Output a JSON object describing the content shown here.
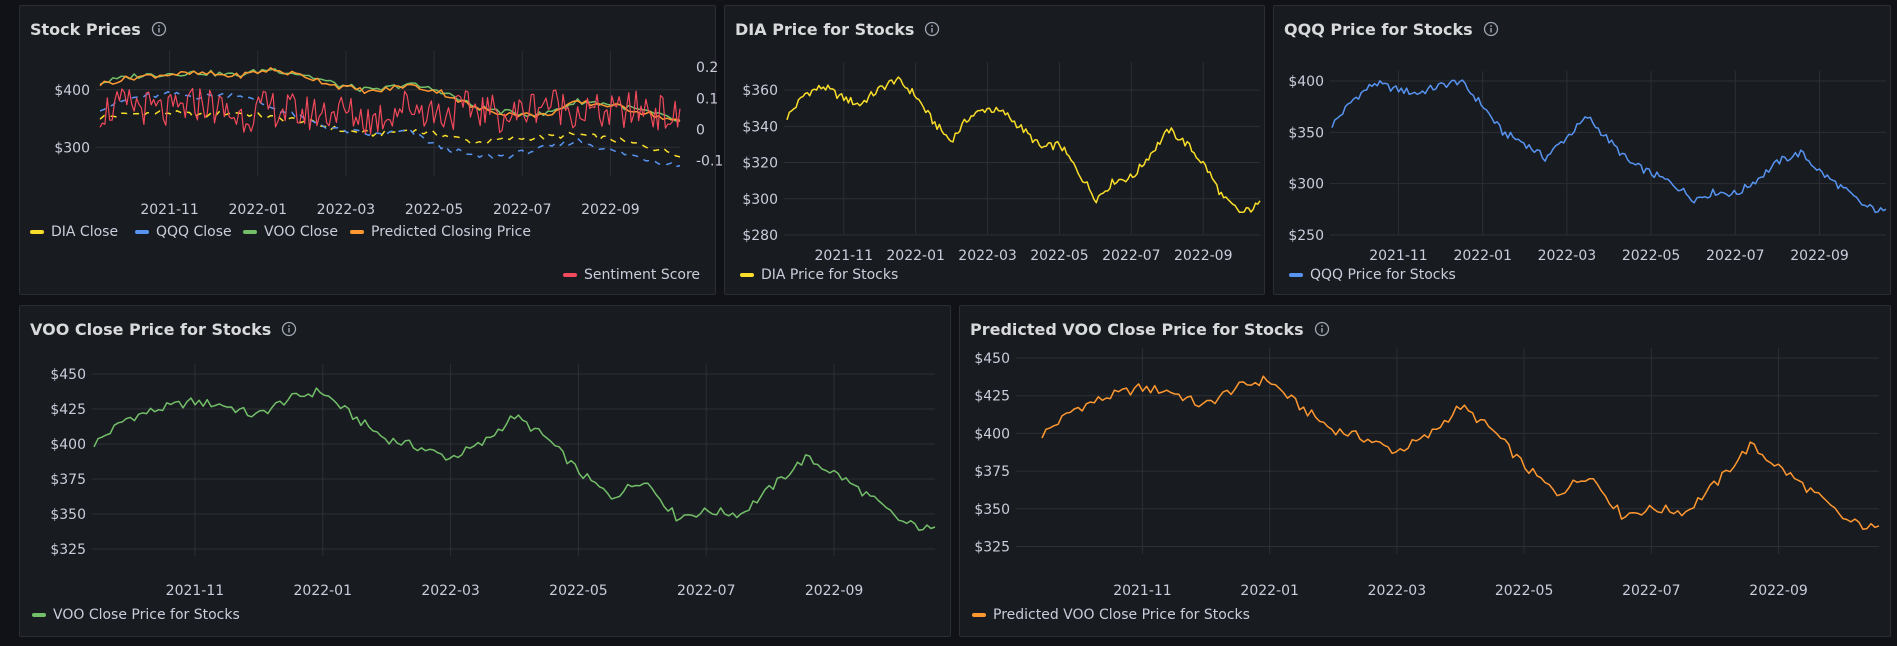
{
  "colors": {
    "dia": "#fade2a",
    "qqq": "#5794f2",
    "voo": "#73bf69",
    "predicted": "#ff9830",
    "sentiment": "#f2495c"
  },
  "icons": {
    "info": "info-circle-icon"
  },
  "panels": {
    "stock_prices": {
      "title": "Stock Prices",
      "legend": [
        "DIA Close",
        "QQQ Close",
        "VOO Close",
        "Predicted Closing Price",
        "Sentiment Score"
      ]
    },
    "dia": {
      "title": "DIA Price for Stocks",
      "legend": [
        "DIA Price for Stocks"
      ]
    },
    "qqq": {
      "title": "QQQ Price for Stocks",
      "legend": [
        "QQQ Price for Stocks"
      ]
    },
    "voo": {
      "title": "VOO Close Price for Stocks",
      "legend": [
        "VOO Close Price for Stocks"
      ]
    },
    "predicted": {
      "title": "Predicted VOO Close Price for Stocks",
      "legend": [
        "Predicted VOO Close Price for Stocks"
      ]
    }
  },
  "chart_data": [
    {
      "id": "stock_prices",
      "type": "line",
      "title": "Stock Prices",
      "x_ticks": [
        "2021-11",
        "2022-01",
        "2022-03",
        "2022-05",
        "2022-07",
        "2022-09"
      ],
      "y_ticks": [
        "$400",
        "$300"
      ],
      "y_right_ticks": [
        "0.2",
        "0.1",
        "0",
        "-0.1"
      ],
      "ylim": [
        250,
        450
      ],
      "y_right_lim": [
        -0.15,
        0.22
      ],
      "series": [
        {
          "name": "DIA Close",
          "color_key": "dia",
          "style": "dashed",
          "values": [
            352,
            358,
            360,
            355,
            361,
            352,
            346,
            330,
            323,
            330,
            322,
            308,
            315,
            318,
            322,
            314,
            302,
            288
          ]
        },
        {
          "name": "QQQ Close",
          "color_key": "qqq",
          "style": "dashed",
          "values": [
            368,
            386,
            392,
            388,
            393,
            370,
            348,
            330,
            322,
            328,
            300,
            284,
            286,
            298,
            312,
            294,
            280,
            268
          ]
        },
        {
          "name": "VOO Close",
          "color_key": "voo",
          "style": "solid",
          "values": [
            412,
            424,
            428,
            430,
            425,
            436,
            426,
            408,
            398,
            410,
            398,
            370,
            360,
            357,
            380,
            375,
            362,
            345
          ]
        },
        {
          "name": "Predicted Closing Price",
          "color_key": "predicted",
          "style": "solid",
          "values": [
            410,
            422,
            427,
            428,
            424,
            435,
            424,
            406,
            396,
            408,
            396,
            368,
            358,
            355,
            378,
            373,
            360,
            343
          ]
        },
        {
          "name": "Sentiment Score",
          "color_key": "sentiment",
          "axis": "right",
          "style": "solid",
          "values": [
            0.06,
            0.08,
            0.05,
            0.09,
            0.04,
            0.07,
            0.05,
            0.06,
            0.03,
            0.08,
            0.05,
            0.07,
            0.04,
            0.09,
            0.06,
            0.05,
            0.07,
            0.03
          ]
        }
      ]
    },
    {
      "id": "dia",
      "type": "line",
      "title": "DIA Price for Stocks",
      "x_ticks": [
        "2021-11",
        "2022-01",
        "2022-03",
        "2022-05",
        "2022-07",
        "2022-09"
      ],
      "y_ticks": [
        "$360",
        "$340",
        "$320",
        "$300",
        "$280"
      ],
      "ylim": [
        280,
        370
      ],
      "series": [
        {
          "name": "DIA Price for Stocks",
          "color_key": "dia",
          "values": [
            345,
            358,
            362,
            356,
            352,
            360,
            366,
            358,
            343,
            332,
            345,
            350,
            347,
            338,
            328,
            330,
            315,
            300,
            310,
            312,
            325,
            338,
            330,
            318,
            300,
            292,
            297
          ]
        }
      ]
    },
    {
      "id": "qqq",
      "type": "line",
      "title": "QQQ Price for Stocks",
      "x_ticks": [
        "2021-11",
        "2022-01",
        "2022-03",
        "2022-05",
        "2022-07",
        "2022-09"
      ],
      "y_ticks": [
        "$400",
        "$350",
        "$300",
        "$250"
      ],
      "ylim": [
        250,
        400
      ],
      "series": [
        {
          "name": "QQQ Price for Stocks",
          "color_key": "qqq",
          "values": [
            357,
            382,
            398,
            392,
            388,
            395,
            400,
            378,
            350,
            340,
            325,
            345,
            365,
            342,
            320,
            310,
            300,
            285,
            292,
            290,
            305,
            322,
            330,
            310,
            295,
            278,
            272
          ]
        }
      ]
    },
    {
      "id": "voo",
      "type": "line",
      "title": "VOO Close Price for Stocks",
      "x_ticks": [
        "2021-11",
        "2022-01",
        "2022-03",
        "2022-05",
        "2022-07",
        "2022-09"
      ],
      "y_ticks": [
        "$450",
        "$425",
        "$400",
        "$375",
        "$350",
        "$325"
      ],
      "ylim": [
        320,
        450
      ],
      "series": [
        {
          "name": "VOO Close Price for Stocks",
          "color_key": "voo",
          "values": [
            400,
            418,
            425,
            430,
            428,
            420,
            432,
            438,
            420,
            404,
            398,
            390,
            400,
            420,
            404,
            380,
            362,
            375,
            348,
            352,
            350,
            370,
            390,
            378,
            362,
            344,
            338
          ]
        }
      ]
    },
    {
      "id": "predicted",
      "type": "line",
      "title": "Predicted VOO Close Price for Stocks",
      "x_ticks": [
        "2021-11",
        "2022-01",
        "2022-03",
        "2022-05",
        "2022-07",
        "2022-09"
      ],
      "y_ticks": [
        "$450",
        "$425",
        "$400",
        "$375",
        "$350",
        "$325"
      ],
      "ylim": [
        320,
        450
      ],
      "series": [
        {
          "name": "Predicted VOO Close Price for Stocks",
          "color_key": "predicted",
          "values": [
            399,
            416,
            424,
            430,
            428,
            418,
            430,
            436,
            418,
            403,
            397,
            388,
            398,
            418,
            402,
            378,
            360,
            373,
            346,
            350,
            348,
            368,
            392,
            376,
            360,
            342,
            336
          ]
        }
      ]
    }
  ]
}
